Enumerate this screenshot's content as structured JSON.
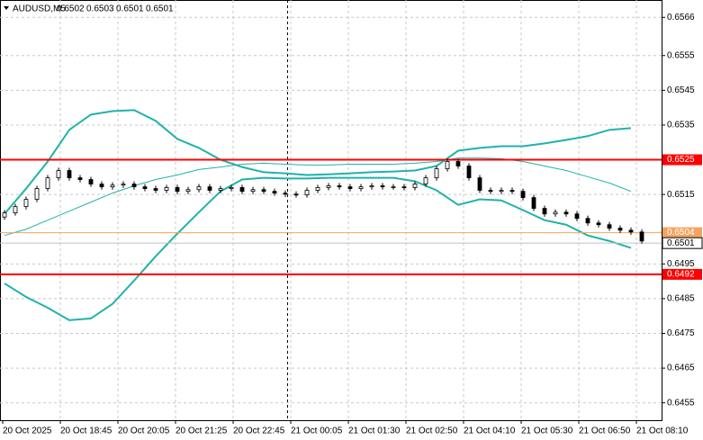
{
  "chart_data": {
    "type": "candlestick",
    "symbol": "AUDUSD,M5",
    "header_ohlc": [
      0.6502,
      0.6503,
      0.6501,
      0.6501
    ],
    "categories": [
      "20 Oct 2025",
      "20 Oct 18:45",
      "20 Oct 20:05",
      "20 Oct 21:25",
      "20 Oct 22:45",
      "21 Oct 00:05",
      "21 Oct 01:30",
      "21 Oct 02:50",
      "21 Oct 04:10",
      "21 Oct 05:30",
      "21 Oct 06:50",
      "21 Oct 08:10"
    ],
    "ylim": [
      0.645,
      0.6571
    ],
    "yticks": [
      0.6566,
      0.6555,
      0.6545,
      0.6535,
      0.6515,
      0.6495,
      0.6485,
      0.6475,
      0.6465,
      0.6455
    ],
    "grid": true,
    "open": [
      0.65085,
      0.65097,
      0.65115,
      0.65136,
      0.65167,
      0.65198,
      0.65219,
      0.65198,
      0.65193,
      0.6518,
      0.65172,
      0.65177,
      0.6518,
      0.65172,
      0.65167,
      0.65162,
      0.6517,
      0.65159,
      0.65164,
      0.65172,
      0.65162,
      0.65167,
      0.6517,
      0.65159,
      0.65164,
      0.65159,
      0.65154,
      0.65151,
      0.65149,
      0.65162,
      0.6517,
      0.65175,
      0.65172,
      0.65167,
      0.65172,
      0.65175,
      0.65172,
      0.65172,
      0.6517,
      0.6518,
      0.65198,
      0.65224,
      0.65245,
      0.65232,
      0.65198,
      0.65162,
      0.65159,
      0.65162,
      0.65159,
      0.65141,
      0.6511,
      0.65094,
      0.65099,
      0.65094,
      0.65081,
      0.65068,
      0.65063,
      0.65053,
      0.65047,
      0.65042
    ],
    "high": [
      0.65105,
      0.65123,
      0.65144,
      0.65175,
      0.65206,
      0.65227,
      0.65227,
      0.65206,
      0.65201,
      0.65188,
      0.65185,
      0.65188,
      0.65188,
      0.6518,
      0.65175,
      0.65178,
      0.65178,
      0.65172,
      0.6518,
      0.6518,
      0.65175,
      0.65178,
      0.65178,
      0.65172,
      0.65172,
      0.65167,
      0.65162,
      0.65159,
      0.6517,
      0.65178,
      0.65183,
      0.65183,
      0.6518,
      0.6518,
      0.65183,
      0.65183,
      0.6518,
      0.6518,
      0.65188,
      0.65206,
      0.65232,
      0.65253,
      0.65253,
      0.6524,
      0.65206,
      0.6517,
      0.6517,
      0.6517,
      0.65167,
      0.65149,
      0.65118,
      0.65107,
      0.65107,
      0.65102,
      0.65089,
      0.65076,
      0.65071,
      0.65061,
      0.65055,
      0.6505
    ],
    "low": [
      0.65077,
      0.65089,
      0.65107,
      0.65128,
      0.65159,
      0.6519,
      0.6519,
      0.65185,
      0.65172,
      0.65164,
      0.65164,
      0.65169,
      0.65164,
      0.65159,
      0.65154,
      0.65154,
      0.65151,
      0.65151,
      0.65156,
      0.65154,
      0.65154,
      0.65159,
      0.65151,
      0.65151,
      0.65151,
      0.65146,
      0.65143,
      0.65141,
      0.65141,
      0.65154,
      0.65162,
      0.65164,
      0.65159,
      0.65159,
      0.65164,
      0.65164,
      0.65164,
      0.65162,
      0.65162,
      0.65172,
      0.6519,
      0.65216,
      0.65224,
      0.6519,
      0.65154,
      0.65151,
      0.65151,
      0.65151,
      0.65133,
      0.65102,
      0.65086,
      0.65086,
      0.65086,
      0.65073,
      0.6506,
      0.65055,
      0.65045,
      0.65039,
      0.65034,
      0.65008
    ],
    "close": [
      0.65097,
      0.65115,
      0.65136,
      0.65167,
      0.65198,
      0.65219,
      0.65198,
      0.65193,
      0.6518,
      0.65172,
      0.65177,
      0.6518,
      0.65172,
      0.65167,
      0.65162,
      0.6517,
      0.65159,
      0.65164,
      0.65172,
      0.65162,
      0.65167,
      0.6517,
      0.65159,
      0.65164,
      0.65159,
      0.65154,
      0.65151,
      0.65149,
      0.65162,
      0.6517,
      0.65175,
      0.65172,
      0.65167,
      0.65172,
      0.65175,
      0.65172,
      0.65172,
      0.6517,
      0.6518,
      0.65198,
      0.65224,
      0.65245,
      0.65232,
      0.65198,
      0.65162,
      0.65159,
      0.65162,
      0.65159,
      0.65141,
      0.6511,
      0.65094,
      0.65099,
      0.65094,
      0.65081,
      0.65068,
      0.65063,
      0.65053,
      0.65047,
      0.65042,
      0.65016
    ],
    "bollinger": {
      "color": "#20b2aa",
      "upper": [
        0.65094,
        0.65167,
        0.65245,
        0.65336,
        0.6538,
        0.6539,
        0.65393,
        0.65362,
        0.6531,
        0.65284,
        0.6525,
        0.65229,
        0.65214,
        0.65211,
        0.65206,
        0.65208,
        0.65211,
        0.65214,
        0.65216,
        0.65219,
        0.65232,
        0.65276,
        0.65284,
        0.65289,
        0.65289,
        0.65297,
        0.65307,
        0.65318,
        0.65336,
        0.65341
      ],
      "middle": [
        0.65032,
        0.6505,
        0.65076,
        0.65102,
        0.65128,
        0.65154,
        0.65175,
        0.65193,
        0.65206,
        0.65222,
        0.65229,
        0.65237,
        0.6524,
        0.65237,
        0.65235,
        0.65235,
        0.65237,
        0.65237,
        0.65237,
        0.6524,
        0.65245,
        0.65255,
        0.65255,
        0.65253,
        0.65245,
        0.65232,
        0.65219,
        0.65201,
        0.65183,
        0.65159
      ],
      "lower": [
        0.64894,
        0.64855,
        0.64824,
        0.64788,
        0.64793,
        0.64835,
        0.64902,
        0.64972,
        0.65037,
        0.65099,
        0.65159,
        0.65193,
        0.65198,
        0.65196,
        0.65196,
        0.65198,
        0.65198,
        0.65198,
        0.65198,
        0.65188,
        0.65162,
        0.6512,
        0.65136,
        0.65133,
        0.65105,
        0.65076,
        0.65063,
        0.65032,
        0.65016,
        0.64996
      ]
    },
    "levels": [
      {
        "value": 0.6525,
        "color": "#ff0000"
      },
      {
        "value": 0.6492,
        "color": "#ff0000"
      },
      {
        "value": 0.6504,
        "color": "#f4a460"
      }
    ],
    "last_price": 0.6501
  }
}
